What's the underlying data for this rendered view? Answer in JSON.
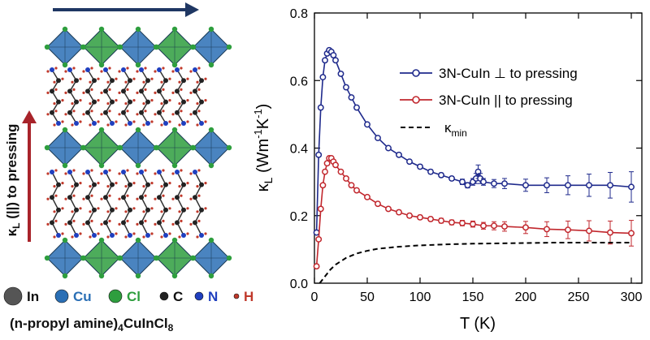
{
  "panel_left": {
    "legend": [
      {
        "symbol": "In",
        "color": "#555555"
      },
      {
        "symbol": "Cu",
        "color": "#2a6fb5"
      },
      {
        "symbol": "Cl",
        "color": "#2e9e3e"
      },
      {
        "symbol": "C",
        "color": "#222222"
      },
      {
        "symbol": "N",
        "color": "#1f3fbf"
      },
      {
        "symbol": "H",
        "color": "#c0392b"
      }
    ],
    "compound_label_parts": [
      "(n-propyl amine)",
      "4",
      "CuInCl",
      "8"
    ],
    "perp_arrow_color": "#1f3763",
    "parallel_arrow_color": "#a8232a",
    "parallel_arrow_label_parts": [
      "κ",
      "L",
      " (||) to pressing"
    ]
  },
  "chart_data": {
    "type": "line",
    "xlabel": "T (K)",
    "ylabel_parts": [
      "κ",
      "L",
      " (Wm",
      "-1",
      "K",
      "-1",
      ")"
    ],
    "xlim": [
      0,
      310
    ],
    "ylim": [
      0,
      0.8
    ],
    "xticks": [
      0,
      50,
      100,
      150,
      200,
      250,
      300
    ],
    "yticks": [
      0.0,
      0.2,
      0.4,
      0.6,
      0.8
    ],
    "ytick_labels": [
      "0.0",
      "0.2",
      "0.4",
      "0.6",
      "0.8"
    ],
    "grid": false,
    "legend_position": "top-right",
    "series": [
      {
        "name": "3N-CuIn ⊥ to pressing",
        "color": "#1f2a8c",
        "marker": "circle",
        "errorbars": true,
        "x": [
          2,
          4,
          6,
          8,
          10,
          12,
          14,
          16,
          18,
          20,
          25,
          30,
          35,
          40,
          50,
          60,
          70,
          80,
          90,
          100,
          110,
          120,
          130,
          140,
          145,
          150,
          153,
          155,
          157,
          160,
          170,
          180,
          200,
          220,
          240,
          260,
          280,
          300
        ],
        "y": [
          0.15,
          0.38,
          0.52,
          0.61,
          0.66,
          0.68,
          0.69,
          0.685,
          0.675,
          0.66,
          0.62,
          0.58,
          0.55,
          0.52,
          0.47,
          0.43,
          0.4,
          0.38,
          0.36,
          0.345,
          0.33,
          0.32,
          0.31,
          0.3,
          0.29,
          0.3,
          0.31,
          0.33,
          0.31,
          0.3,
          0.295,
          0.295,
          0.29,
          0.29,
          0.29,
          0.29,
          0.29,
          0.285
        ],
        "err": [
          0.005,
          0.005,
          0.005,
          0.005,
          0.005,
          0.005,
          0.005,
          0.005,
          0.005,
          0.005,
          0.005,
          0.005,
          0.005,
          0.005,
          0.005,
          0.005,
          0.005,
          0.005,
          0.005,
          0.006,
          0.006,
          0.006,
          0.006,
          0.008,
          0.008,
          0.01,
          0.015,
          0.02,
          0.015,
          0.01,
          0.012,
          0.015,
          0.018,
          0.022,
          0.028,
          0.033,
          0.038,
          0.045
        ]
      },
      {
        "name": "3N-CuIn || to pressing",
        "color": "#c1272d",
        "marker": "circle",
        "errorbars": true,
        "x": [
          2,
          4,
          6,
          8,
          10,
          12,
          14,
          16,
          18,
          20,
          25,
          30,
          35,
          40,
          50,
          60,
          70,
          80,
          90,
          100,
          110,
          120,
          130,
          140,
          150,
          160,
          170,
          180,
          200,
          220,
          240,
          260,
          280,
          300
        ],
        "y": [
          0.05,
          0.13,
          0.22,
          0.29,
          0.33,
          0.355,
          0.37,
          0.37,
          0.36,
          0.35,
          0.33,
          0.31,
          0.29,
          0.275,
          0.255,
          0.235,
          0.22,
          0.21,
          0.2,
          0.195,
          0.19,
          0.185,
          0.18,
          0.178,
          0.175,
          0.17,
          0.17,
          0.168,
          0.165,
          0.16,
          0.158,
          0.155,
          0.15,
          0.148
        ],
        "err": [
          0.005,
          0.005,
          0.005,
          0.005,
          0.005,
          0.005,
          0.005,
          0.005,
          0.005,
          0.005,
          0.005,
          0.005,
          0.005,
          0.005,
          0.005,
          0.005,
          0.005,
          0.006,
          0.006,
          0.006,
          0.006,
          0.007,
          0.007,
          0.008,
          0.009,
          0.01,
          0.012,
          0.014,
          0.018,
          0.022,
          0.026,
          0.03,
          0.034,
          0.038
        ]
      },
      {
        "name_parts": [
          "κ",
          "min"
        ],
        "color": "#000000",
        "style": "dashed",
        "x": [
          5,
          10,
          15,
          20,
          30,
          40,
          50,
          60,
          80,
          100,
          125,
          150,
          175,
          200,
          225,
          250,
          275,
          300
        ],
        "y": [
          0.0,
          0.02,
          0.04,
          0.055,
          0.075,
          0.088,
          0.096,
          0.102,
          0.108,
          0.112,
          0.115,
          0.117,
          0.118,
          0.119,
          0.12,
          0.12,
          0.12,
          0.12
        ]
      }
    ]
  }
}
